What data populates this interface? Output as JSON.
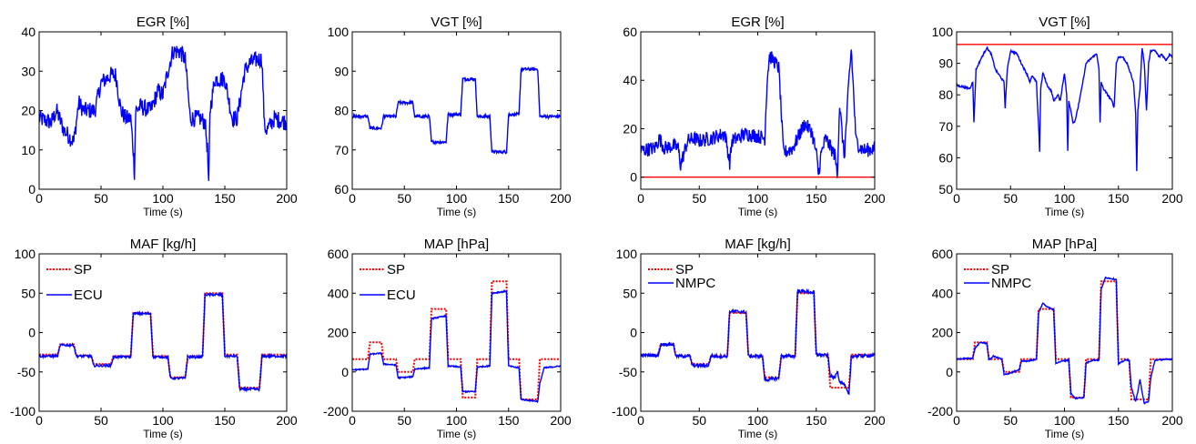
{
  "chart_data": [
    {
      "type": "line",
      "title": "EGR [%]",
      "xlabel": "Time (s)",
      "xlim": [
        0,
        200
      ],
      "ylim": [
        0,
        40
      ],
      "xticks": [
        0,
        50,
        100,
        150,
        200
      ],
      "yticks": [
        0,
        10,
        20,
        30,
        40
      ],
      "series": [
        {
          "color": "#0000ff",
          "noise": 2.2,
          "x": [
            0,
            10,
            14,
            20,
            28,
            32,
            36,
            45,
            50,
            58,
            62,
            66,
            70,
            74,
            76,
            77,
            78,
            82,
            90,
            96,
            100,
            104,
            108,
            114,
            118,
            122,
            130,
            134,
            136,
            137,
            138,
            142,
            150,
            156,
            160,
            166,
            170,
            176,
            180,
            182,
            184,
            190,
            200
          ],
          "y": [
            18,
            17,
            20,
            15,
            12,
            22,
            20,
            20,
            27,
            29,
            29,
            20,
            18,
            18,
            10,
            4,
            20,
            21,
            20,
            25,
            24,
            30,
            35,
            35,
            33,
            18,
            18,
            17,
            10,
            0,
            20,
            28,
            28,
            18,
            18,
            30,
            32,
            33,
            33,
            16,
            15,
            18,
            17
          ]
        }
      ]
    },
    {
      "type": "line",
      "title": "VGT [%]",
      "xlabel": "Time (s)",
      "xlim": [
        0,
        200
      ],
      "ylim": [
        60,
        100
      ],
      "xticks": [
        0,
        50,
        100,
        150,
        200
      ],
      "yticks": [
        60,
        70,
        80,
        90,
        100
      ],
      "series": [
        {
          "color": "#0000ff",
          "noise": 0.4,
          "x": [
            0,
            15,
            17,
            28,
            30,
            42,
            44,
            58,
            60,
            74,
            76,
            90,
            92,
            104,
            106,
            118,
            120,
            132,
            134,
            148,
            150,
            160,
            162,
            178,
            180,
            200
          ],
          "y": [
            78.5,
            78.5,
            75.5,
            75.5,
            78.5,
            78.5,
            82,
            82,
            78.5,
            78.5,
            72,
            72,
            79,
            79,
            88,
            88,
            78.5,
            78.5,
            69.5,
            69.5,
            79,
            79,
            90.5,
            90.5,
            78.5,
            78.5
          ]
        }
      ]
    },
    {
      "type": "line",
      "title": "EGR [%]",
      "xlabel": "Time (s)",
      "xlim": [
        0,
        200
      ],
      "ylim": [
        -5,
        60
      ],
      "xticks": [
        0,
        50,
        100,
        150,
        200
      ],
      "yticks": [
        0,
        20,
        40,
        60
      ],
      "series": [
        {
          "color": "#0000ff",
          "noise": 3,
          "x": [
            0,
            12,
            16,
            20,
            28,
            32,
            34,
            40,
            45,
            50,
            60,
            72,
            76,
            78,
            90,
            100,
            106,
            108,
            110,
            114,
            118,
            122,
            130,
            140,
            146,
            150,
            152,
            154,
            158,
            166,
            168,
            170,
            174,
            178,
            180,
            184,
            188,
            192,
            200
          ],
          "y": [
            11,
            12,
            16,
            12,
            13,
            12,
            5,
            15,
            16,
            15,
            16,
            18,
            6,
            15,
            18,
            17,
            16,
            40,
            50,
            48,
            45,
            10,
            12,
            22,
            19,
            10,
            1,
            9,
            16,
            9,
            1,
            30,
            8,
            40,
            53,
            15,
            12,
            11,
            12
          ]
        },
        {
          "color": "#ff0000",
          "noise": 0,
          "x": [
            0,
            200
          ],
          "y": [
            0,
            0
          ]
        }
      ]
    },
    {
      "type": "line",
      "title": "VGT [%]",
      "xlabel": "Time (s)",
      "xlim": [
        0,
        200
      ],
      "ylim": [
        50,
        100
      ],
      "xticks": [
        0,
        50,
        100,
        150,
        200
      ],
      "yticks": [
        50,
        60,
        70,
        80,
        90,
        100
      ],
      "series": [
        {
          "color": "#0000ff",
          "noise": 0.3,
          "x": [
            0,
            12,
            15,
            16,
            18,
            22,
            28,
            32,
            36,
            42,
            44,
            45,
            47,
            50,
            56,
            60,
            66,
            68,
            70,
            74,
            76,
            77,
            78,
            80,
            84,
            88,
            90,
            94,
            96,
            100,
            102,
            103,
            104,
            106,
            108,
            110,
            112,
            116,
            120,
            126,
            130,
            132,
            133,
            134,
            136,
            140,
            144,
            146,
            148,
            150,
            154,
            158,
            164,
            166,
            167,
            168,
            170,
            172,
            174,
            176,
            178,
            180,
            184,
            188,
            190,
            194,
            198,
            200
          ],
          "y": [
            83,
            82,
            84,
            71,
            88,
            91,
            95,
            93,
            88,
            85,
            84,
            76,
            88,
            94,
            93,
            90,
            86,
            84,
            86,
            84,
            70,
            62,
            82,
            87,
            83,
            81,
            78,
            80,
            78,
            87,
            80,
            62,
            78,
            75,
            71,
            72,
            75,
            82,
            90,
            92,
            93,
            88,
            71,
            84,
            82,
            80,
            78,
            76,
            90,
            92,
            92,
            90,
            84,
            74,
            56,
            75,
            82,
            95,
            90,
            75,
            90,
            94,
            94,
            92,
            93,
            91,
            93,
            92
          ]
        },
        {
          "color": "#ff0000",
          "noise": 0,
          "x": [
            0,
            200
          ],
          "y": [
            96,
            96
          ]
        }
      ]
    },
    {
      "type": "line",
      "title": "MAF [kg/h]",
      "xlabel": "Time (s)",
      "xlim": [
        0,
        200
      ],
      "ylim": [
        -100,
        100
      ],
      "xticks": [
        0,
        50,
        100,
        150,
        200
      ],
      "yticks": [
        -100,
        -50,
        0,
        50,
        100
      ],
      "legend": {
        "position": "top-left",
        "entries": [
          "SP",
          "ECU"
        ]
      },
      "series": [
        {
          "name": "SP",
          "color": "#ff0000",
          "dashed": true,
          "noise": 0,
          "x": [
            0,
            15,
            17,
            28,
            30,
            42,
            44,
            58,
            60,
            74,
            76,
            90,
            92,
            104,
            106,
            118,
            120,
            132,
            134,
            148,
            150,
            160,
            162,
            178,
            180,
            200
          ],
          "y": [
            -28,
            -28,
            -15,
            -15,
            -29,
            -29,
            -40,
            -40,
            -30,
            -30,
            25,
            25,
            -30,
            -30,
            -57,
            -57,
            -30,
            -30,
            50,
            50,
            -28,
            -28,
            -70,
            -70,
            -28,
            -28
          ]
        },
        {
          "name": "ECU",
          "color": "#0000ff",
          "noise": 1.5,
          "x": [
            0,
            15,
            17,
            28,
            30,
            42,
            44,
            58,
            60,
            74,
            76,
            90,
            92,
            104,
            106,
            118,
            120,
            132,
            134,
            148,
            150,
            160,
            162,
            178,
            180,
            200
          ],
          "y": [
            -30,
            -30,
            -16,
            -16,
            -30,
            -30,
            -42,
            -42,
            -31,
            -31,
            24,
            24,
            -31,
            -31,
            -58,
            -58,
            -31,
            -31,
            48,
            48,
            -30,
            -30,
            -72,
            -72,
            -30,
            -30
          ]
        }
      ]
    },
    {
      "type": "line",
      "title": "MAP [hPa]",
      "xlabel": "Time (s)",
      "xlim": [
        0,
        200
      ],
      "ylim": [
        -200,
        600
      ],
      "xticks": [
        0,
        50,
        100,
        150,
        200
      ],
      "yticks": [
        -200,
        0,
        200,
        400,
        600
      ],
      "legend": {
        "position": "top-left",
        "entries": [
          "SP",
          "ECU"
        ]
      },
      "series": [
        {
          "name": "SP",
          "color": "#ff0000",
          "dashed": true,
          "noise": 0,
          "x": [
            0,
            15,
            17,
            28,
            30,
            42,
            44,
            58,
            60,
            74,
            76,
            90,
            92,
            104,
            106,
            118,
            120,
            132,
            134,
            148,
            150,
            160,
            162,
            178,
            180,
            200
          ],
          "y": [
            65,
            65,
            150,
            150,
            65,
            65,
            0,
            0,
            65,
            65,
            320,
            320,
            65,
            65,
            -130,
            -130,
            65,
            65,
            460,
            460,
            65,
            65,
            -140,
            -140,
            65,
            65
          ]
        },
        {
          "name": "ECU",
          "color": "#0000ff",
          "noise": 3,
          "x": [
            0,
            15,
            17,
            28,
            30,
            42,
            44,
            58,
            60,
            74,
            76,
            90,
            92,
            104,
            106,
            118,
            120,
            132,
            134,
            148,
            150,
            160,
            162,
            178,
            180,
            184,
            200
          ],
          "y": [
            10,
            15,
            90,
            95,
            40,
            35,
            -30,
            -25,
            15,
            20,
            270,
            285,
            30,
            25,
            -100,
            -100,
            25,
            30,
            400,
            410,
            30,
            20,
            -140,
            -150,
            -60,
            20,
            30
          ]
        }
      ]
    },
    {
      "type": "line",
      "title": "MAF [kg/h]",
      "xlabel": "Time (s)",
      "xlim": [
        0,
        200
      ],
      "ylim": [
        -100,
        100
      ],
      "xticks": [
        0,
        50,
        100,
        150,
        200
      ],
      "yticks": [
        -100,
        -50,
        0,
        50,
        100
      ],
      "legend": {
        "position": "top-left",
        "entries": [
          "SP",
          "NMPC"
        ]
      },
      "series": [
        {
          "name": "SP",
          "color": "#ff0000",
          "dashed": true,
          "noise": 0,
          "x": [
            0,
            15,
            17,
            28,
            30,
            42,
            44,
            58,
            60,
            74,
            76,
            90,
            92,
            104,
            106,
            118,
            120,
            132,
            134,
            148,
            150,
            160,
            162,
            178,
            180,
            200
          ],
          "y": [
            -28,
            -28,
            -15,
            -15,
            -29,
            -29,
            -40,
            -40,
            -30,
            -30,
            25,
            25,
            -30,
            -30,
            -57,
            -57,
            -30,
            -30,
            50,
            50,
            -28,
            -28,
            -70,
            -70,
            -28,
            -28
          ]
        },
        {
          "name": "NMPC",
          "color": "#0000ff",
          "noise": 2,
          "x": [
            0,
            15,
            17,
            28,
            30,
            42,
            44,
            58,
            60,
            74,
            76,
            90,
            92,
            104,
            106,
            118,
            120,
            132,
            134,
            148,
            150,
            160,
            162,
            166,
            168,
            170,
            174,
            178,
            180,
            200
          ],
          "y": [
            -29,
            -29,
            -15,
            -15,
            -30,
            -30,
            -42,
            -42,
            -30,
            -30,
            27,
            26,
            -30,
            -30,
            -60,
            -58,
            -30,
            -30,
            53,
            51,
            -28,
            -29,
            -55,
            -58,
            -48,
            -62,
            -66,
            -80,
            -30,
            -29
          ]
        }
      ]
    },
    {
      "type": "line",
      "title": "MAP [hPa]",
      "xlabel": "Time (s)",
      "xlim": [
        0,
        200
      ],
      "ylim": [
        -200,
        600
      ],
      "xticks": [
        0,
        50,
        100,
        150,
        200
      ],
      "yticks": [
        -200,
        0,
        200,
        400,
        600
      ],
      "legend": {
        "position": "top-left",
        "entries": [
          "SP",
          "NMPC"
        ]
      },
      "series": [
        {
          "name": "SP",
          "color": "#ff0000",
          "dashed": true,
          "noise": 0,
          "x": [
            0,
            15,
            17,
            28,
            30,
            42,
            44,
            58,
            60,
            74,
            76,
            90,
            92,
            104,
            106,
            118,
            120,
            132,
            134,
            148,
            150,
            160,
            162,
            178,
            180,
            200
          ],
          "y": [
            65,
            65,
            150,
            150,
            65,
            65,
            0,
            0,
            65,
            65,
            320,
            320,
            65,
            65,
            -130,
            -130,
            65,
            65,
            460,
            460,
            65,
            65,
            -140,
            -140,
            65,
            65
          ]
        },
        {
          "name": "NMPC",
          "color": "#0000ff",
          "noise": 3,
          "x": [
            0,
            15,
            17,
            22,
            28,
            30,
            34,
            42,
            44,
            50,
            58,
            60,
            66,
            74,
            76,
            80,
            84,
            90,
            92,
            98,
            104,
            106,
            110,
            118,
            120,
            126,
            132,
            134,
            138,
            148,
            150,
            156,
            160,
            162,
            166,
            168,
            170,
            174,
            178,
            180,
            184,
            200
          ],
          "y": [
            65,
            70,
            120,
            150,
            145,
            60,
            80,
            65,
            -15,
            -5,
            10,
            55,
            55,
            65,
            300,
            350,
            330,
            315,
            45,
            55,
            60,
            -110,
            -135,
            -130,
            45,
            60,
            60,
            420,
            480,
            470,
            40,
            60,
            60,
            -80,
            -150,
            -100,
            -40,
            -160,
            -150,
            -30,
            60,
            65
          ]
        }
      ]
    }
  ]
}
